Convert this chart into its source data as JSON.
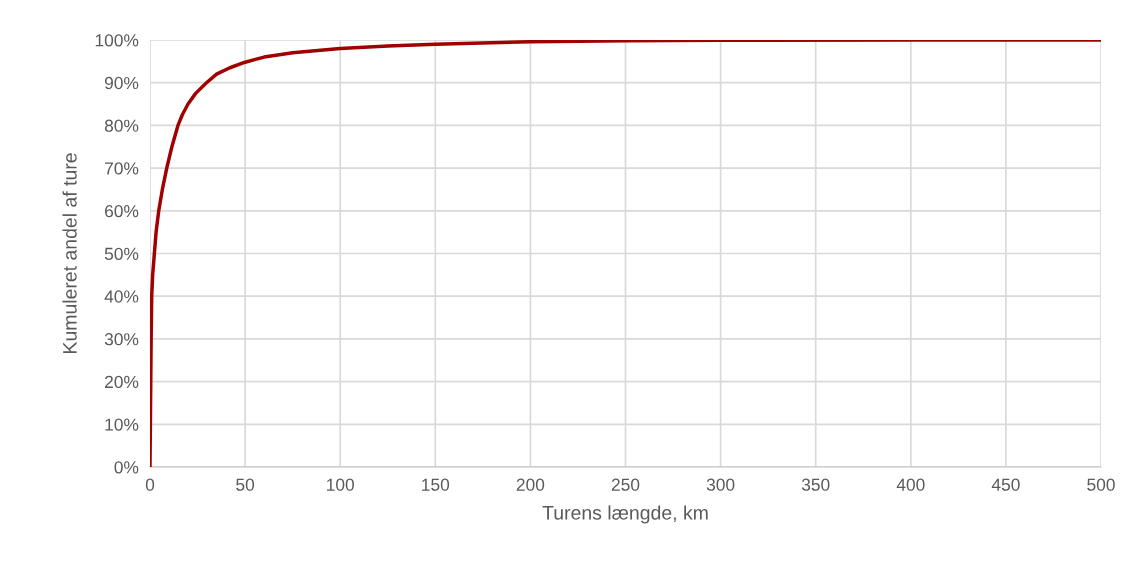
{
  "chart_data": {
    "type": "line",
    "xlabel": "Turens længde, km",
    "ylabel": "Kumuleret andel af ture",
    "series": [
      {
        "color": "#a00000",
        "x": [
          0,
          0.2,
          0.4,
          0.6,
          0.9,
          1.4,
          2.3,
          3.2,
          4.6,
          6.5,
          8.8,
          11.5,
          14.7,
          17,
          20,
          24,
          29.7,
          35,
          42,
          50,
          60,
          75,
          100,
          125,
          150,
          200,
          250,
          300,
          400,
          500
        ],
        "values": [
          0,
          10,
          20,
          30,
          40,
          45,
          50,
          55,
          60,
          65,
          70,
          75,
          80,
          82.5,
          85,
          87.5,
          90,
          92,
          93.5,
          94.8,
          96,
          97,
          98,
          98.6,
          99,
          99.6,
          99.85,
          99.95,
          100,
          100
        ]
      }
    ],
    "xlim": [
      0,
      500
    ],
    "xticks": [
      0,
      50,
      100,
      150,
      200,
      250,
      300,
      350,
      400,
      450,
      500
    ],
    "ylim": [
      0,
      100
    ],
    "yticks": [
      {
        "value": 0,
        "label": "0%"
      },
      {
        "value": 10,
        "label": "10%"
      },
      {
        "value": 20,
        "label": "20%"
      },
      {
        "value": 30,
        "label": "30%"
      },
      {
        "value": 40,
        "label": "40%"
      },
      {
        "value": 50,
        "label": "50%"
      },
      {
        "value": 60,
        "label": "60%"
      },
      {
        "value": 70,
        "label": "70%"
      },
      {
        "value": 80,
        "label": "80%"
      },
      {
        "value": 90,
        "label": "90%"
      },
      {
        "value": 100,
        "label": "100%"
      }
    ],
    "grid": true,
    "line_style": "solid",
    "marker": "none"
  }
}
